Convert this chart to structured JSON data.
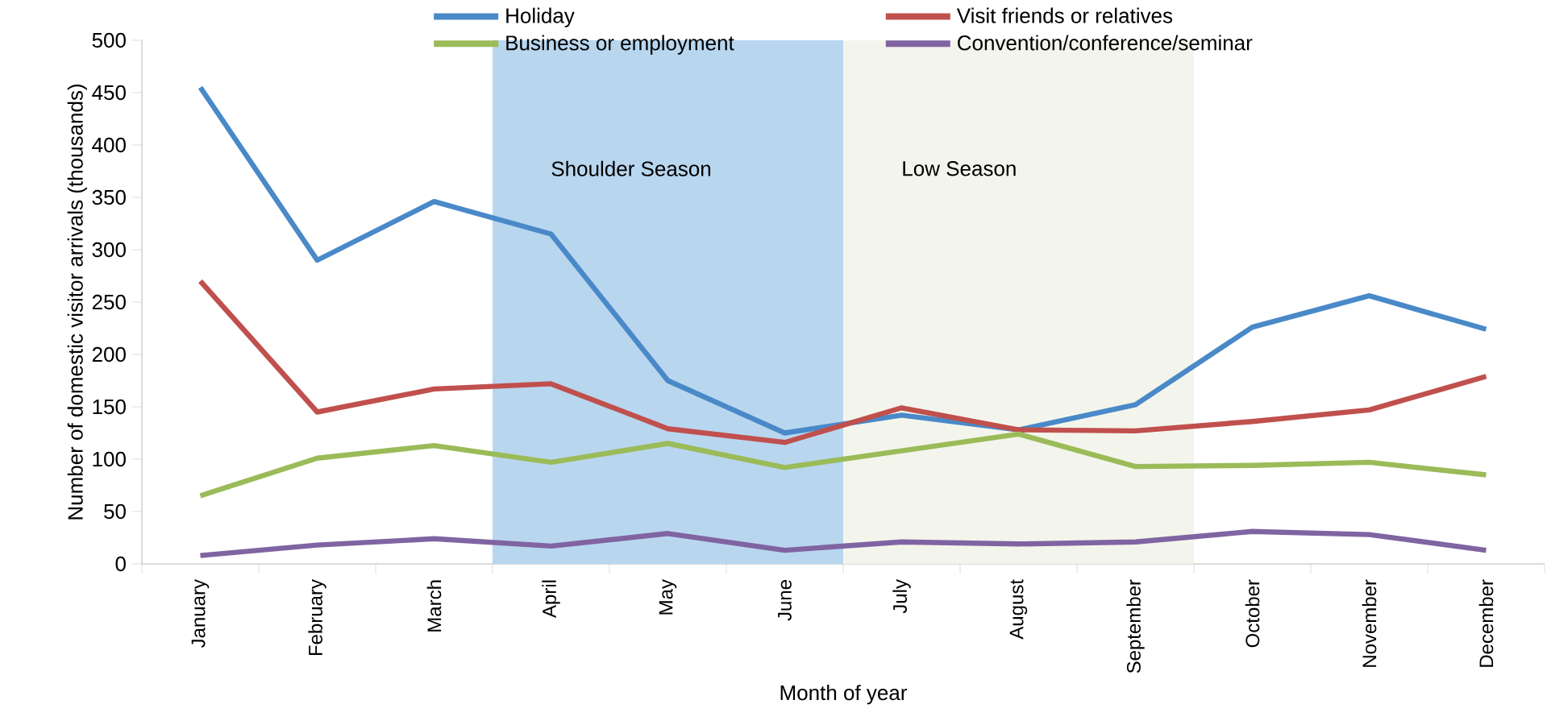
{
  "chart_data": {
    "type": "line",
    "xlabel": "Month of year",
    "ylabel": "Number of domestic visitor arrivals (thousands)",
    "categories": [
      "January",
      "February",
      "March",
      "April",
      "May",
      "June",
      "July",
      "August",
      "September",
      "October",
      "November",
      "December"
    ],
    "series": [
      {
        "name": "Holiday",
        "color": "#4a89c8",
        "values": [
          455,
          290,
          346,
          315,
          175,
          125,
          142,
          128,
          152,
          226,
          256,
          224
        ]
      },
      {
        "name": "Visit friends or relatives",
        "color": "#c0504d",
        "values": [
          270,
          145,
          167,
          172,
          129,
          116,
          149,
          128,
          127,
          136,
          147,
          179
        ]
      },
      {
        "name": "Business or employment",
        "color": "#9bbb59",
        "values": [
          65,
          101,
          113,
          97,
          115,
          92,
          108,
          124,
          93,
          94,
          97,
          85
        ]
      },
      {
        "name": "Convention/conference/seminar",
        "color": "#8064a2",
        "values": [
          8,
          18,
          24,
          17,
          29,
          13,
          21,
          19,
          21,
          31,
          28,
          13
        ]
      }
    ],
    "ylim": [
      0,
      500
    ],
    "yticks": [
      0,
      50,
      100,
      150,
      200,
      250,
      300,
      350,
      400,
      450,
      500
    ],
    "bands": [
      {
        "axis": "x",
        "from": "April",
        "to": "June",
        "label": "Shoulder Season",
        "color": "#b9d6ef"
      },
      {
        "axis": "x",
        "from": "July",
        "to": "September",
        "label": "Low Season",
        "color": "#f3f5ec"
      }
    ],
    "grid": false,
    "legend": "top",
    "marker": "none",
    "line_style": "solid"
  }
}
